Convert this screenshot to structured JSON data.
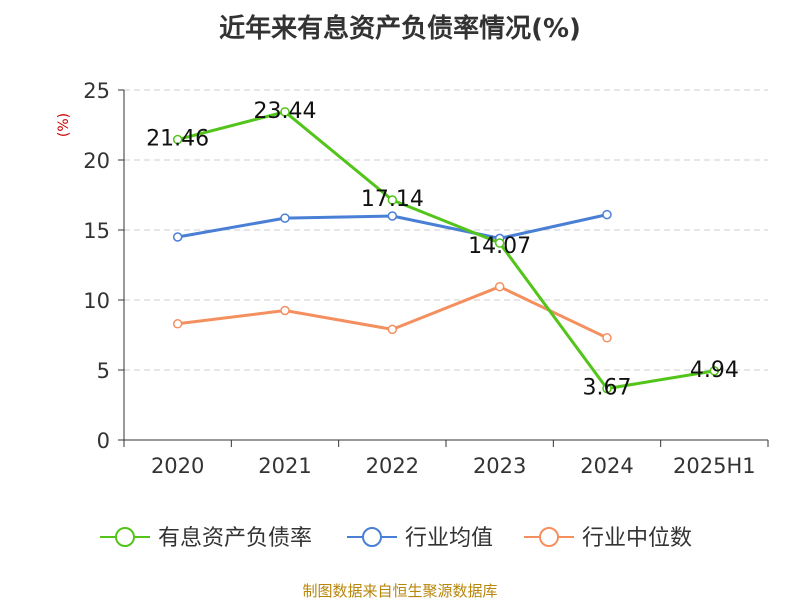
{
  "chart_data": {
    "type": "line",
    "title": "近年来有息资产负债率情况(%)",
    "ylabel": "(%)",
    "categories": [
      "2020",
      "2021",
      "2022",
      "2023",
      "2024",
      "2025H1"
    ],
    "ylim": [
      0,
      25
    ],
    "yticks": [
      0,
      5,
      10,
      15,
      20,
      25
    ],
    "grid": true,
    "legend_position": "bottom",
    "series": [
      {
        "name": "有息资产负债率",
        "color": "#52c41a",
        "values": [
          21.46,
          23.44,
          17.14,
          14.07,
          3.67,
          4.94
        ],
        "labels": [
          "21.46",
          "23.44",
          "17.14",
          "14.07",
          "3.67",
          "4.94"
        ]
      },
      {
        "name": "行业均值",
        "color": "#4a7fd6",
        "values": [
          14.5,
          15.85,
          16.0,
          14.4,
          16.1,
          null
        ]
      },
      {
        "name": "行业中位数",
        "color": "#f4905f",
        "values": [
          8.3,
          9.25,
          7.9,
          10.95,
          7.3,
          null
        ]
      }
    ]
  },
  "source": "制图数据来自恒生聚源数据库"
}
